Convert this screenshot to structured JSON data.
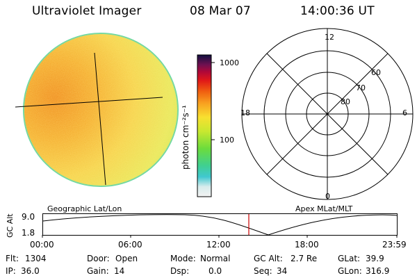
{
  "header": {
    "instrument": "Ultraviolet Imager",
    "date": "08 Mar 07",
    "time": "14:00:36 UT"
  },
  "colorbar": {
    "unit_label": "photon cm⁻²s⁻¹",
    "ticks": [
      "1000",
      "100"
    ]
  },
  "polar": {
    "lat_labels": [
      "60",
      "70",
      "80"
    ],
    "mlt_labels": {
      "top": "12",
      "left": "18",
      "right": "6",
      "bottom": "0"
    }
  },
  "timeline": {
    "left_title": "Geographic Lat/Lon",
    "right_title": "Apex MLat/MLT",
    "y_axis_label": "GC Alt",
    "y_ticks": [
      "9.0",
      "1.8"
    ],
    "x_ticks": [
      "00:00",
      "06:00",
      "12:00",
      "18:00",
      "23:59"
    ],
    "marker_time": "14:00"
  },
  "status": {
    "row1": [
      {
        "label": "Flt:",
        "value": "1304"
      },
      {
        "label": "Door:",
        "value": "Open"
      },
      {
        "label": "Mode:",
        "value": "Normal"
      },
      {
        "label": "GC Alt:",
        "value": "2.7 Re"
      },
      {
        "label": "GLat:",
        "value": "39.9"
      }
    ],
    "row2": [
      {
        "label": "IP:",
        "value": "36.0"
      },
      {
        "label": "Gain:",
        "value": "14"
      },
      {
        "label": "Dsp:",
        "value": "0.0"
      },
      {
        "label": "Seq:",
        "value": "34"
      },
      {
        "label": "GLon:",
        "value": "316.9"
      }
    ]
  },
  "colors": {
    "marker": "#cc0000",
    "disk_bright": "#f4a020",
    "disk_mid": "#f7d84a",
    "disk_low": "#c8e84a"
  }
}
